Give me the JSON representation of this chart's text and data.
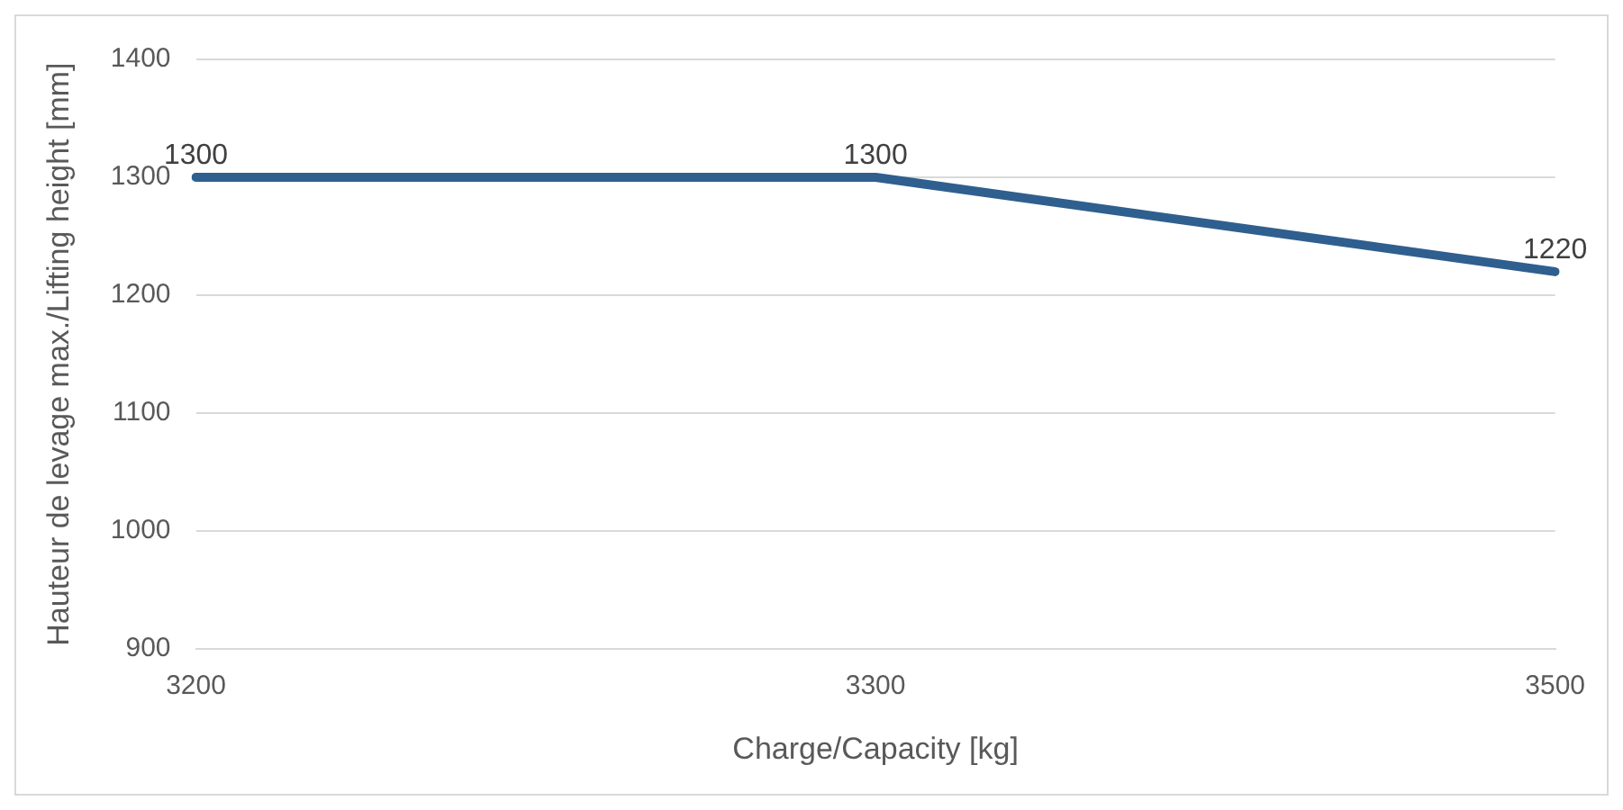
{
  "chart_data": {
    "type": "line",
    "xlabel": "Charge/Capacity [kg]",
    "ylabel": "Hauteur de levage max./Lifting height [mm]",
    "categories": [
      "3200",
      "3300",
      "3500"
    ],
    "series": [
      {
        "color": "#2f5f8f",
        "values": [
          1300,
          1300,
          1220
        ]
      }
    ],
    "ylim": [
      900,
      1400
    ],
    "yticks": [
      900,
      1000,
      1100,
      1200,
      1300,
      1400
    ],
    "grid": "y",
    "legend": false,
    "marker": "none",
    "line_style": "solid",
    "data_labels": true
  }
}
